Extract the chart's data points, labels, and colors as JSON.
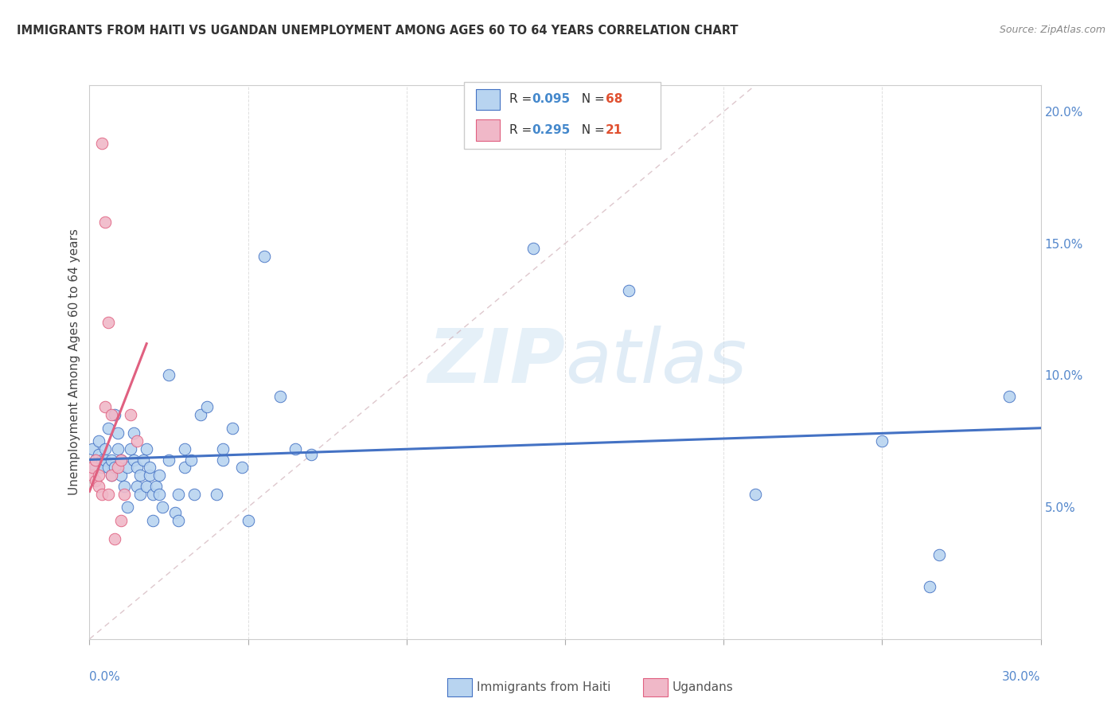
{
  "title": "IMMIGRANTS FROM HAITI VS UGANDAN UNEMPLOYMENT AMONG AGES 60 TO 64 YEARS CORRELATION CHART",
  "source": "Source: ZipAtlas.com",
  "ylabel": "Unemployment Among Ages 60 to 64 years",
  "xlim": [
    0.0,
    0.3
  ],
  "ylim": [
    0.0,
    0.21
  ],
  "xticks": [
    0.0,
    0.05,
    0.1,
    0.15,
    0.2,
    0.25,
    0.3
  ],
  "yticks_right": [
    0.05,
    0.1,
    0.15,
    0.2
  ],
  "ytick_right_labels": [
    "5.0%",
    "10.0%",
    "15.0%",
    "20.0%"
  ],
  "legend1_r": "0.095",
  "legend1_n": "68",
  "legend2_r": "0.295",
  "legend2_n": "21",
  "blue_color": "#b8d4f0",
  "pink_color": "#f0b8c8",
  "blue_line_color": "#4472c4",
  "pink_line_color": "#e06080",
  "watermark_zip": "ZIP",
  "watermark_atlas": "atlas",
  "blue_scatter": [
    [
      0.001,
      0.072
    ],
    [
      0.002,
      0.065
    ],
    [
      0.002,
      0.068
    ],
    [
      0.003,
      0.075
    ],
    [
      0.003,
      0.07
    ],
    [
      0.004,
      0.068
    ],
    [
      0.004,
      0.065
    ],
    [
      0.005,
      0.072
    ],
    [
      0.005,
      0.068
    ],
    [
      0.006,
      0.065
    ],
    [
      0.006,
      0.08
    ],
    [
      0.007,
      0.068
    ],
    [
      0.007,
      0.062
    ],
    [
      0.008,
      0.065
    ],
    [
      0.008,
      0.085
    ],
    [
      0.009,
      0.072
    ],
    [
      0.009,
      0.078
    ],
    [
      0.01,
      0.068
    ],
    [
      0.01,
      0.062
    ],
    [
      0.011,
      0.058
    ],
    [
      0.012,
      0.065
    ],
    [
      0.012,
      0.05
    ],
    [
      0.013,
      0.072
    ],
    [
      0.014,
      0.068
    ],
    [
      0.014,
      0.078
    ],
    [
      0.015,
      0.065
    ],
    [
      0.015,
      0.058
    ],
    [
      0.016,
      0.055
    ],
    [
      0.016,
      0.062
    ],
    [
      0.017,
      0.068
    ],
    [
      0.018,
      0.072
    ],
    [
      0.018,
      0.058
    ],
    [
      0.019,
      0.062
    ],
    [
      0.019,
      0.065
    ],
    [
      0.02,
      0.055
    ],
    [
      0.02,
      0.045
    ],
    [
      0.021,
      0.058
    ],
    [
      0.022,
      0.055
    ],
    [
      0.022,
      0.062
    ],
    [
      0.023,
      0.05
    ],
    [
      0.025,
      0.068
    ],
    [
      0.025,
      0.1
    ],
    [
      0.027,
      0.048
    ],
    [
      0.028,
      0.055
    ],
    [
      0.028,
      0.045
    ],
    [
      0.03,
      0.065
    ],
    [
      0.03,
      0.072
    ],
    [
      0.032,
      0.068
    ],
    [
      0.033,
      0.055
    ],
    [
      0.035,
      0.085
    ],
    [
      0.037,
      0.088
    ],
    [
      0.04,
      0.055
    ],
    [
      0.042,
      0.072
    ],
    [
      0.042,
      0.068
    ],
    [
      0.045,
      0.08
    ],
    [
      0.048,
      0.065
    ],
    [
      0.05,
      0.045
    ],
    [
      0.055,
      0.145
    ],
    [
      0.06,
      0.092
    ],
    [
      0.065,
      0.072
    ],
    [
      0.07,
      0.07
    ],
    [
      0.14,
      0.148
    ],
    [
      0.17,
      0.132
    ],
    [
      0.21,
      0.055
    ],
    [
      0.25,
      0.075
    ],
    [
      0.265,
      0.02
    ],
    [
      0.268,
      0.032
    ],
    [
      0.29,
      0.092
    ]
  ],
  "pink_scatter": [
    [
      0.001,
      0.062
    ],
    [
      0.001,
      0.065
    ],
    [
      0.002,
      0.068
    ],
    [
      0.002,
      0.06
    ],
    [
      0.003,
      0.058
    ],
    [
      0.003,
      0.062
    ],
    [
      0.004,
      0.055
    ],
    [
      0.004,
      0.188
    ],
    [
      0.005,
      0.088
    ],
    [
      0.005,
      0.158
    ],
    [
      0.006,
      0.12
    ],
    [
      0.006,
      0.055
    ],
    [
      0.007,
      0.085
    ],
    [
      0.007,
      0.062
    ],
    [
      0.008,
      0.038
    ],
    [
      0.009,
      0.065
    ],
    [
      0.01,
      0.068
    ],
    [
      0.01,
      0.045
    ],
    [
      0.011,
      0.055
    ],
    [
      0.013,
      0.085
    ],
    [
      0.015,
      0.075
    ]
  ],
  "blue_trendline": [
    [
      0.0,
      0.068
    ],
    [
      0.3,
      0.08
    ]
  ],
  "pink_trendline": [
    [
      0.0,
      0.056
    ],
    [
      0.018,
      0.112
    ]
  ],
  "diagonal_line": [
    [
      0.0,
      0.0
    ],
    [
      0.21,
      0.21
    ]
  ]
}
